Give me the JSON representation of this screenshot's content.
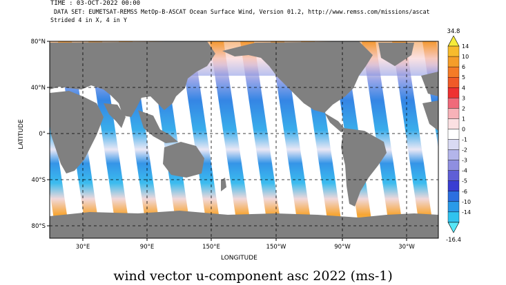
{
  "header": {
    "time": "TIME : 03-OCT-2022 00:00",
    "dataset": "DATA SET: EUMETSAT-REMSS MetOp-B-ASCAT Ocean Surface Wind, Version 01.2, http://www.remss.com/missions/ascat",
    "stride": "Strided 4 in X, 4 in Y"
  },
  "axes": {
    "ylabel": "LATITUDE",
    "xlabel": "LONGITUDE",
    "lat_ticks": [
      "80°N",
      "40°N",
      "0°",
      "40°S",
      "80°S"
    ],
    "lon_ticks": [
      "30°E",
      "90°E",
      "150°E",
      "150°W",
      "90°W",
      "30°W"
    ]
  },
  "colorbar": {
    "max": "34.8",
    "min": "-16.4",
    "labels": [
      "14",
      "10",
      "6",
      "5",
      "4",
      "3",
      "2",
      "1",
      "0",
      "-1",
      "-2",
      "-3",
      "-4",
      "-5",
      "-6",
      "-10",
      "-14"
    ],
    "colors": [
      "#f6ec3a",
      "#f7bb2c",
      "#f59d29",
      "#f47b27",
      "#f05a28",
      "#ee3131",
      "#f06a7a",
      "#f7b2b8",
      "#fbe0e2",
      "#ffffff",
      "#d9daf3",
      "#b3b5ea",
      "#8f8fe0",
      "#5f5fd6",
      "#3a3ed2",
      "#2c6fe0",
      "#2a9ae8",
      "#31c3ef",
      "#56e7f7"
    ]
  },
  "caption": "wind vector u-component asc 2022 (ms-1)",
  "colors": {
    "land": "#808080",
    "ocean_nodata": "#ffffff"
  }
}
